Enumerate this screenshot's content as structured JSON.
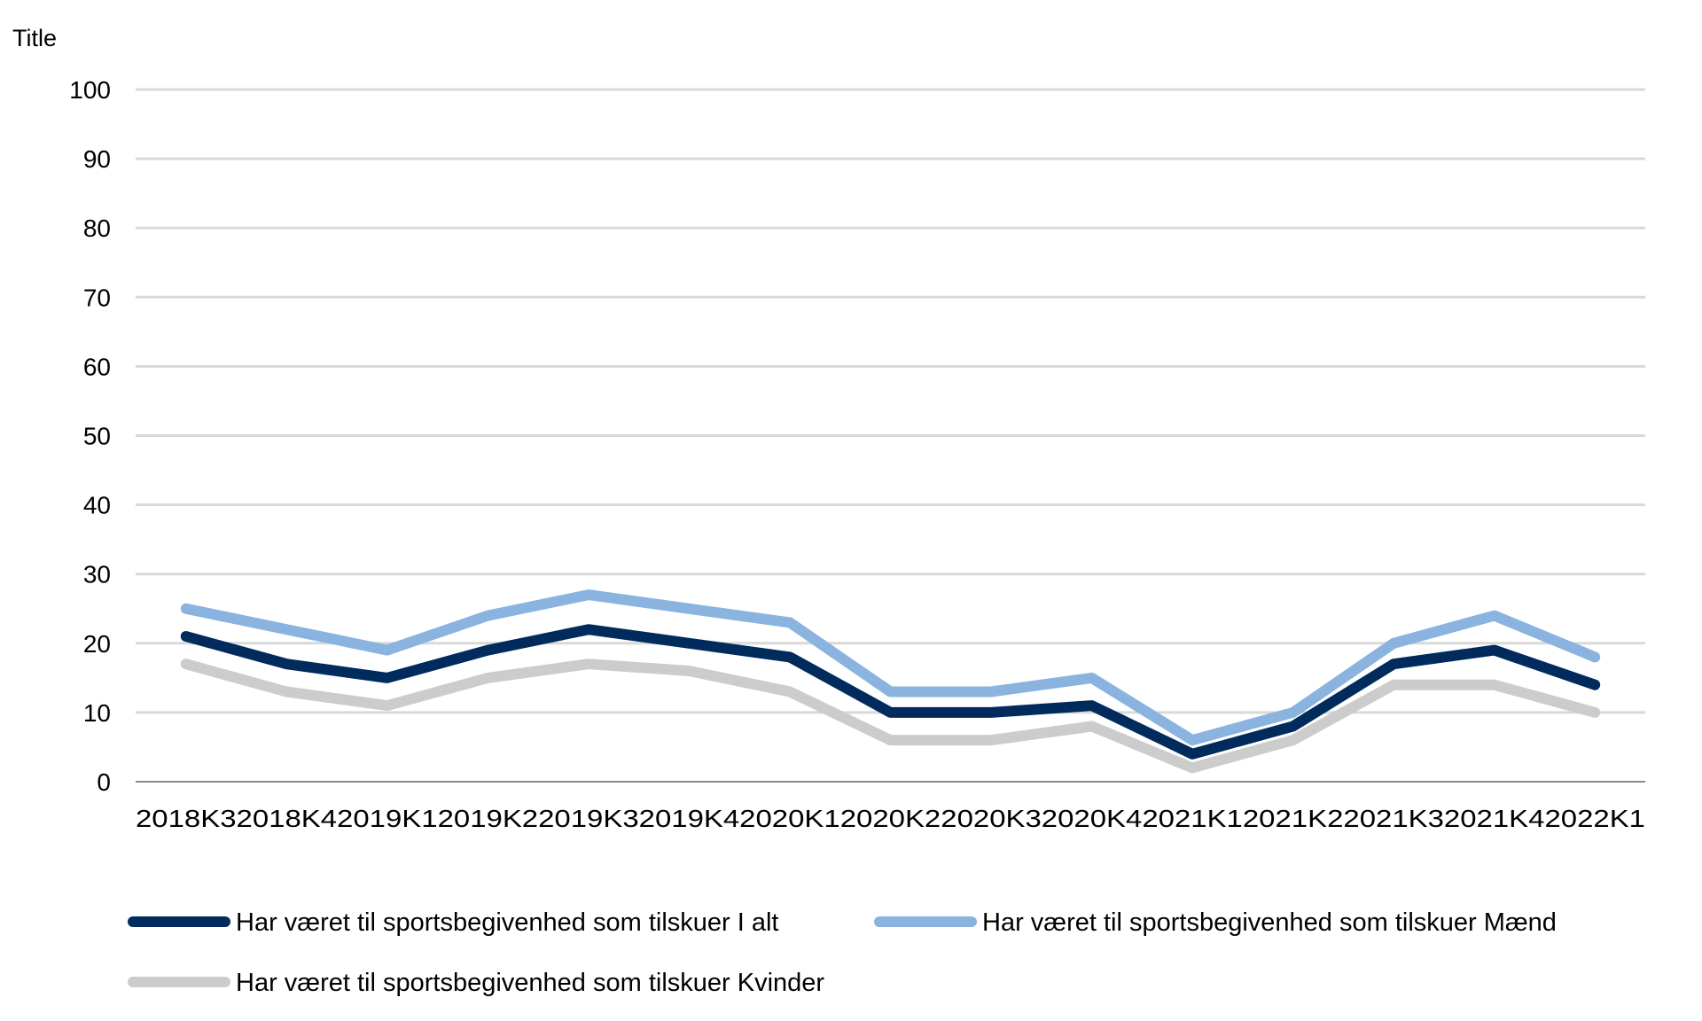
{
  "chart_data": {
    "type": "line",
    "title": "Title",
    "xlabel": "",
    "ylabel": "",
    "ylim": [
      0,
      100
    ],
    "yticks": [
      "0",
      "10",
      "20",
      "30",
      "40",
      "50",
      "60",
      "70",
      "80",
      "90",
      "100"
    ],
    "categories": [
      "2018K3",
      "2018K4",
      "2019K1",
      "2019K2",
      "2019K3",
      "2019K4",
      "2020K1",
      "2020K2",
      "2020K3",
      "2020K4",
      "2021K1",
      "2021K2",
      "2021K3",
      "2021K4",
      "2022K1"
    ],
    "grid": true,
    "legend_position": "bottom",
    "series": [
      {
        "name": "Har været til sportsbegivenhed som tilskuer I alt",
        "color": "#002b5c",
        "values": [
          21,
          17,
          15,
          19,
          22,
          20,
          18,
          10,
          10,
          11,
          4,
          8,
          17,
          19,
          14
        ]
      },
      {
        "name": "Har været til sportsbegivenhed som tilskuer Mænd",
        "color": "#8ab4df",
        "values": [
          25,
          22,
          19,
          24,
          27,
          25,
          23,
          13,
          13,
          15,
          6,
          10,
          20,
          24,
          18
        ]
      },
      {
        "name": "Har været til sportsbegivenhed som tilskuer Kvinder",
        "color": "#cccccc",
        "values": [
          17,
          13,
          11,
          15,
          17,
          16,
          13,
          6,
          6,
          8,
          2,
          6,
          14,
          14,
          10
        ]
      }
    ]
  }
}
